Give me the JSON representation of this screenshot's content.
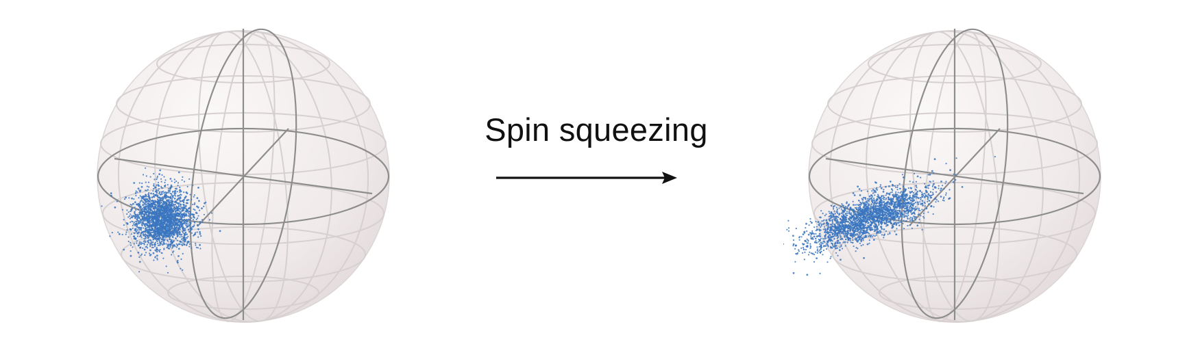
{
  "transition": {
    "label": "Spin squeezing",
    "arrow": "right-arrow"
  },
  "spheres": [
    {
      "id": "initial",
      "state": "coherent-spin-state",
      "distribution": "isotropic"
    },
    {
      "id": "final",
      "state": "squeezed-spin-state",
      "distribution": "elongated-tilted"
    }
  ],
  "colors": {
    "points": "#3a76c0",
    "sphere_fill": "#f2ecec",
    "grid_light": "#d6d0d0",
    "axes": "#8d8d8d",
    "text": "#111111"
  }
}
